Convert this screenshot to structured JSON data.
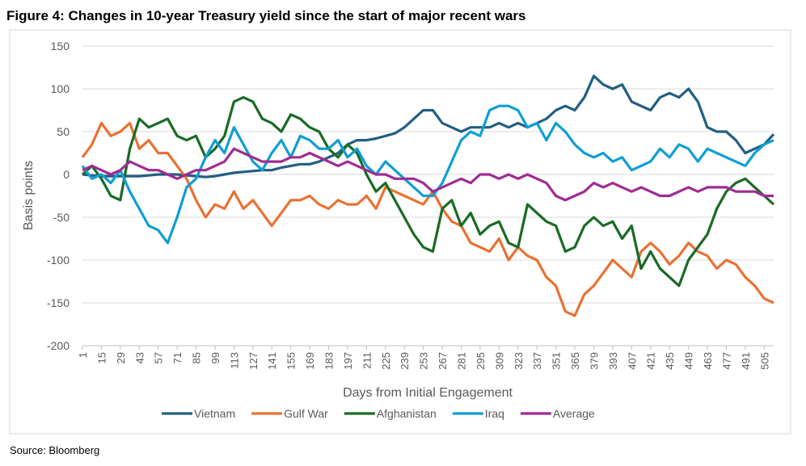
{
  "title": "Figure 4: Changes in 10-year Treasury yield since the start of major recent wars",
  "source": "Source: Bloomberg",
  "chart_data": {
    "type": "line",
    "y_label": "Basis points",
    "x_label": "Days from Initial Engagement",
    "x": [
      1,
      8,
      15,
      22,
      29,
      36,
      43,
      50,
      57,
      64,
      71,
      78,
      85,
      92,
      99,
      106,
      113,
      120,
      127,
      134,
      141,
      148,
      155,
      162,
      169,
      176,
      183,
      190,
      197,
      204,
      211,
      218,
      225,
      232,
      239,
      246,
      253,
      260,
      267,
      274,
      281,
      288,
      295,
      302,
      309,
      316,
      323,
      330,
      337,
      344,
      351,
      358,
      365,
      372,
      379,
      386,
      393,
      400,
      407,
      414,
      421,
      428,
      435,
      442,
      449,
      456,
      463,
      470,
      477,
      484,
      491,
      498,
      505,
      512
    ],
    "series": [
      {
        "name": "Vietnam",
        "color": "#215f82",
        "values": [
          0,
          -1,
          -2,
          -2,
          -2,
          -2,
          -2,
          -1,
          0,
          0,
          0,
          -1,
          -2,
          -3,
          -2,
          0,
          2,
          3,
          4,
          5,
          5,
          8,
          10,
          12,
          12,
          15,
          20,
          25,
          35,
          40,
          40,
          42,
          45,
          48,
          55,
          65,
          75,
          75,
          60,
          55,
          50,
          55,
          55,
          55,
          60,
          55,
          60,
          55,
          60,
          65,
          75,
          80,
          75,
          90,
          115,
          105,
          100,
          105,
          85,
          80,
          75,
          90,
          95,
          90,
          100,
          85,
          55,
          50,
          50,
          40,
          25,
          30,
          35,
          47
        ]
      },
      {
        "name": "Gulf War",
        "color": "#e97132",
        "values": [
          20,
          35,
          60,
          45,
          50,
          60,
          30,
          40,
          25,
          25,
          10,
          -5,
          -30,
          -50,
          -35,
          -40,
          -20,
          -40,
          -30,
          -45,
          -60,
          -45,
          -30,
          -30,
          -25,
          -35,
          -40,
          -30,
          -35,
          -35,
          -25,
          -40,
          -15,
          -20,
          -25,
          -30,
          -35,
          -20,
          -40,
          -55,
          -60,
          -80,
          -85,
          -90,
          -75,
          -100,
          -85,
          -95,
          -100,
          -120,
          -130,
          -160,
          -165,
          -140,
          -130,
          -115,
          -100,
          -110,
          -120,
          -90,
          -80,
          -90,
          -105,
          -95,
          -80,
          -90,
          -95,
          -110,
          -100,
          -105,
          -120,
          -130,
          -145,
          -150
        ]
      },
      {
        "name": "Afghanistan",
        "color": "#196b24",
        "values": [
          0,
          10,
          -5,
          -25,
          -30,
          30,
          65,
          55,
          60,
          65,
          45,
          40,
          45,
          20,
          30,
          45,
          85,
          90,
          85,
          65,
          60,
          50,
          70,
          65,
          55,
          50,
          30,
          20,
          35,
          25,
          0,
          -20,
          -10,
          -30,
          -50,
          -70,
          -85,
          -90,
          -40,
          -30,
          -60,
          -45,
          -70,
          -60,
          -55,
          -80,
          -85,
          -35,
          -45,
          -55,
          -60,
          -90,
          -85,
          -60,
          -50,
          -60,
          -55,
          -75,
          -60,
          -110,
          -90,
          -110,
          -120,
          -130,
          -100,
          -85,
          -70,
          -40,
          -20,
          -10,
          -5,
          -15,
          -25,
          -35
        ]
      },
      {
        "name": "Iraq",
        "color": "#0f9ed5",
        "values": [
          10,
          -5,
          0,
          -10,
          5,
          -20,
          -40,
          -60,
          -65,
          -80,
          -50,
          -15,
          -5,
          20,
          40,
          25,
          55,
          35,
          15,
          5,
          25,
          40,
          20,
          45,
          40,
          30,
          30,
          40,
          20,
          30,
          10,
          0,
          15,
          5,
          -5,
          -15,
          -25,
          -25,
          -10,
          15,
          40,
          50,
          45,
          75,
          80,
          80,
          75,
          55,
          60,
          40,
          60,
          50,
          35,
          25,
          20,
          25,
          15,
          20,
          5,
          10,
          15,
          30,
          20,
          35,
          30,
          15,
          30,
          25,
          20,
          15,
          10,
          25,
          35,
          40
        ]
      },
      {
        "name": "Average",
        "color": "#a02b93",
        "values": [
          5,
          10,
          5,
          0,
          5,
          15,
          10,
          5,
          5,
          0,
          -5,
          0,
          5,
          5,
          10,
          15,
          30,
          25,
          20,
          15,
          15,
          15,
          20,
          20,
          25,
          20,
          15,
          10,
          15,
          10,
          5,
          0,
          0,
          -5,
          -5,
          -5,
          -10,
          -20,
          -15,
          -10,
          -5,
          -10,
          0,
          0,
          -5,
          0,
          -5,
          0,
          -5,
          -10,
          -25,
          -30,
          -25,
          -20,
          -10,
          -15,
          -10,
          -15,
          -20,
          -15,
          -20,
          -25,
          -25,
          -20,
          -15,
          -20,
          -15,
          -15,
          -15,
          -20,
          -20,
          -20,
          -25,
          -25
        ]
      }
    ],
    "xlim": [
      1,
      512
    ],
    "ylim": [
      -200,
      150
    ],
    "xticks": [
      1,
      15,
      29,
      43,
      57,
      71,
      85,
      99,
      113,
      127,
      141,
      155,
      169,
      183,
      197,
      211,
      225,
      239,
      253,
      267,
      281,
      295,
      309,
      323,
      337,
      351,
      365,
      379,
      393,
      407,
      421,
      435,
      449,
      463,
      477,
      491,
      505
    ],
    "yticks": [
      -200,
      -150,
      -100,
      -50,
      0,
      50,
      100,
      150
    ],
    "grid": true,
    "legend": "bottom"
  }
}
